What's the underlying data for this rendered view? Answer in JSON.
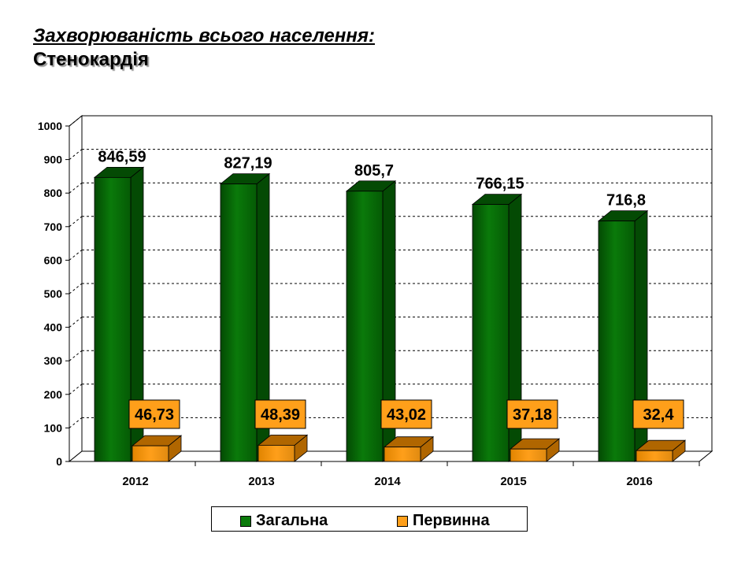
{
  "title": "Захворюваність всього населення:",
  "subtitle": "Стенокардія",
  "colors": {
    "series1": "#0a7a0a",
    "series1_dark": "#044a04",
    "series2": "#ff9f1a",
    "series2_dark": "#b06600",
    "label_box": "#ff9f1a"
  },
  "chart_data": {
    "type": "bar",
    "categories": [
      "2012",
      "2013",
      "2014",
      "2015",
      "2016"
    ],
    "series": [
      {
        "name": "Загальна",
        "values": [
          846.59,
          827.19,
          805.7,
          766.15,
          716.8
        ],
        "labels": [
          "846,59",
          "827,19",
          "805,7",
          "766,15",
          "716,8"
        ]
      },
      {
        "name": "Первинна",
        "values": [
          46.73,
          48.39,
          43.02,
          37.18,
          32.4
        ],
        "labels": [
          "46,73",
          "48,39",
          "43,02",
          "37,18",
          "32,4"
        ]
      }
    ],
    "ylim": [
      0,
      1000
    ],
    "yticks": [
      "0",
      "100",
      "200",
      "300",
      "400",
      "500",
      "600",
      "700",
      "800",
      "900",
      "1000"
    ],
    "grid": true,
    "legend_position": "bottom"
  }
}
